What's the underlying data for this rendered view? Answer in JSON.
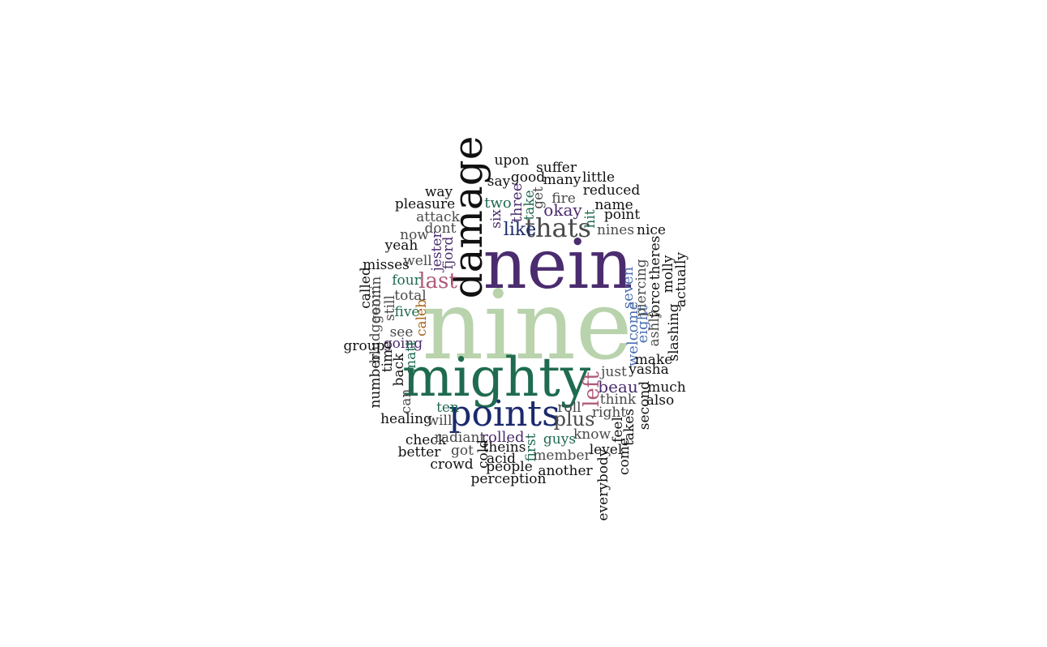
{
  "palette": {
    "black": "#111111",
    "gray": "#4a4a4a",
    "purple": "#4b2c6e",
    "navy": "#1a2a6c",
    "teal": "#1f6b4f",
    "rose": "#b05a7a",
    "sage": "#b9d3ad",
    "blue": "#4a6fb0",
    "amber": "#a8661a"
  },
  "words": [
    {
      "text": "nine",
      "color": "sage"
    },
    {
      "text": "nein",
      "color": "purple"
    },
    {
      "text": "mighty",
      "color": "teal"
    },
    {
      "text": "damage",
      "color": "black"
    },
    {
      "text": "points",
      "color": "navy"
    },
    {
      "text": "thats",
      "color": "gray"
    },
    {
      "text": "last",
      "color": "rose"
    },
    {
      "text": "left",
      "color": "rose"
    },
    {
      "text": "plus",
      "color": "gray"
    },
    {
      "text": "like",
      "color": "navy"
    },
    {
      "text": "okay",
      "color": "purple"
    },
    {
      "text": "beau",
      "color": "purple"
    },
    {
      "text": "seven",
      "color": "blue"
    },
    {
      "text": "welcome",
      "color": "blue"
    },
    {
      "text": "eight",
      "color": "blue"
    },
    {
      "text": "upon",
      "color": "black"
    },
    {
      "text": "suffer",
      "color": "black"
    },
    {
      "text": "say",
      "color": "black"
    },
    {
      "text": "good",
      "color": "black"
    },
    {
      "text": "many",
      "color": "black"
    },
    {
      "text": "little",
      "color": "black"
    },
    {
      "text": "reduced",
      "color": "black"
    },
    {
      "text": "way",
      "color": "black"
    },
    {
      "text": "two",
      "color": "teal"
    },
    {
      "text": "three",
      "color": "purple"
    },
    {
      "text": "take",
      "color": "teal"
    },
    {
      "text": "get",
      "color": "gray"
    },
    {
      "text": "fire",
      "color": "gray"
    },
    {
      "text": "name",
      "color": "black"
    },
    {
      "text": "pleasure",
      "color": "black"
    },
    {
      "text": "attack",
      "color": "gray"
    },
    {
      "text": "six",
      "color": "purple"
    },
    {
      "text": "hit",
      "color": "teal"
    },
    {
      "text": "point",
      "color": "black"
    },
    {
      "text": "dont",
      "color": "gray"
    },
    {
      "text": "nines",
      "color": "gray"
    },
    {
      "text": "nice",
      "color": "black"
    },
    {
      "text": "now",
      "color": "gray"
    },
    {
      "text": "yeah",
      "color": "black"
    },
    {
      "text": "jester",
      "color": "purple"
    },
    {
      "text": "fjord",
      "color": "purple"
    },
    {
      "text": "theres",
      "color": "black"
    },
    {
      "text": "misses",
      "color": "black"
    },
    {
      "text": "well",
      "color": "gray"
    },
    {
      "text": "molly",
      "color": "black"
    },
    {
      "text": "actually",
      "color": "black"
    },
    {
      "text": "called",
      "color": "black"
    },
    {
      "text": "four",
      "color": "teal"
    },
    {
      "text": "piercing",
      "color": "gray"
    },
    {
      "text": "total",
      "color": "gray"
    },
    {
      "text": "force",
      "color": "black"
    },
    {
      "text": "geonin",
      "color": "gray"
    },
    {
      "text": "still",
      "color": "gray"
    },
    {
      "text": "five",
      "color": "teal"
    },
    {
      "text": "caleb",
      "color": "amber"
    },
    {
      "text": "ashly",
      "color": "gray"
    },
    {
      "text": "bludgeonin",
      "color": "gray"
    },
    {
      "text": "see",
      "color": "gray"
    },
    {
      "text": "slashing",
      "color": "black"
    },
    {
      "text": "group",
      "color": "black"
    },
    {
      "text": "going",
      "color": "purple"
    },
    {
      "text": "time",
      "color": "black"
    },
    {
      "text": "matt",
      "color": "teal"
    },
    {
      "text": "make",
      "color": "black"
    },
    {
      "text": "number",
      "color": "black"
    },
    {
      "text": "back",
      "color": "black"
    },
    {
      "text": "yasha",
      "color": "black"
    },
    {
      "text": "just",
      "color": "gray"
    },
    {
      "text": "much",
      "color": "black"
    },
    {
      "text": "can",
      "color": "gray"
    },
    {
      "text": "think",
      "color": "gray"
    },
    {
      "text": "also",
      "color": "black"
    },
    {
      "text": "ten",
      "color": "teal"
    },
    {
      "text": "roll",
      "color": "gray"
    },
    {
      "text": "second",
      "color": "black"
    },
    {
      "text": "right",
      "color": "gray"
    },
    {
      "text": "healing",
      "color": "black"
    },
    {
      "text": "will",
      "color": "gray"
    },
    {
      "text": "feel",
      "color": "black"
    },
    {
      "text": "takes",
      "color": "black"
    },
    {
      "text": "check",
      "color": "black"
    },
    {
      "text": "radiant",
      "color": "gray"
    },
    {
      "text": "rolled",
      "color": "purple"
    },
    {
      "text": "know",
      "color": "gray"
    },
    {
      "text": "guys",
      "color": "teal"
    },
    {
      "text": "first",
      "color": "teal"
    },
    {
      "text": "better",
      "color": "black"
    },
    {
      "text": "got",
      "color": "gray"
    },
    {
      "text": "theins",
      "color": "black"
    },
    {
      "text": "cold",
      "color": "black"
    },
    {
      "text": "level",
      "color": "black"
    },
    {
      "text": "come",
      "color": "black"
    },
    {
      "text": "member",
      "color": "gray"
    },
    {
      "text": "acid",
      "color": "black"
    },
    {
      "text": "crowd",
      "color": "black"
    },
    {
      "text": "people",
      "color": "black"
    },
    {
      "text": "another",
      "color": "black"
    },
    {
      "text": "everybody",
      "color": "black"
    },
    {
      "text": "perception",
      "color": "black"
    }
  ]
}
